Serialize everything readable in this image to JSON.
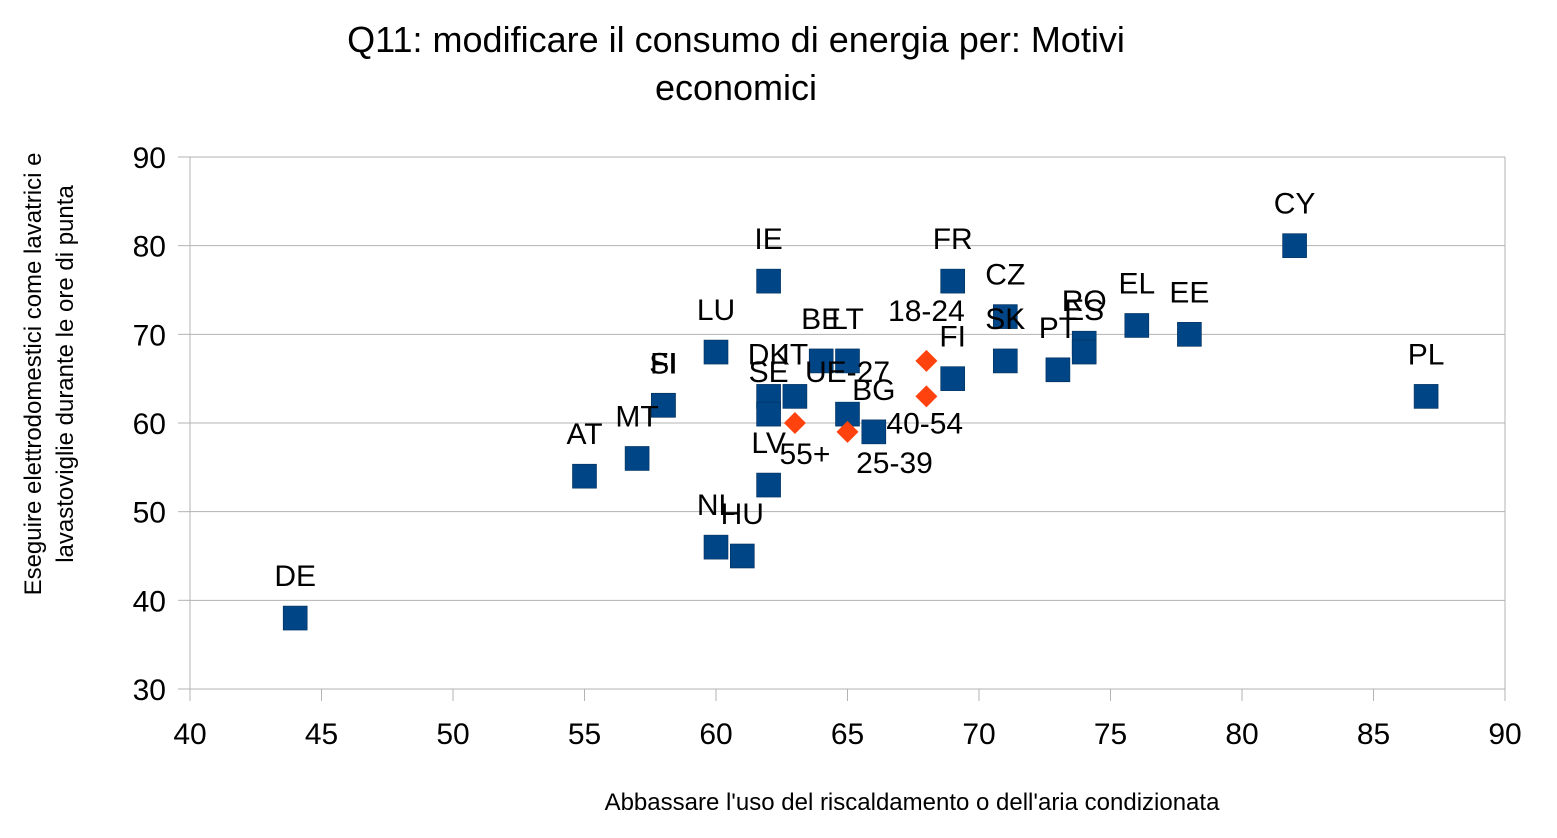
{
  "chart_data": {
    "type": "scatter",
    "title_lines": [
      "Q11: modificare il consumo di energia per: Motivi",
      "economici"
    ],
    "xlabel": "Abbassare l'uso del riscaldamento o dell'aria condizionata",
    "ylabel_lines": [
      "Eseguire elettrodomestici come lavatrici e",
      "lavastoviglie durante le ore di punta"
    ],
    "xlim": [
      40,
      90
    ],
    "ylim": [
      30,
      90
    ],
    "x_ticks": [
      40,
      45,
      50,
      55,
      60,
      65,
      70,
      75,
      80,
      85,
      90
    ],
    "y_ticks": [
      30,
      40,
      50,
      60,
      70,
      80,
      90
    ],
    "grid": "horizontal",
    "colors": {
      "countries": "#004586",
      "age_groups": "#ff420e",
      "grid": "#b3b3b3"
    },
    "series": [
      {
        "marker": "square",
        "points": [
          {
            "label": "DE",
            "x": 44,
            "y": 38
          },
          {
            "label": "AT",
            "x": 55,
            "y": 54
          },
          {
            "label": "MT",
            "x": 57,
            "y": 56
          },
          {
            "label": "FI",
            "x": 58,
            "y": 62
          },
          {
            "label": "SI",
            "x": 58,
            "y": 62
          },
          {
            "label": "LU",
            "x": 60,
            "y": 68
          },
          {
            "label": "NL",
            "x": 60,
            "y": 46
          },
          {
            "label": "HU",
            "x": 61,
            "y": 45
          },
          {
            "label": "IE",
            "x": 62,
            "y": 76
          },
          {
            "label": "DK",
            "x": 62,
            "y": 63
          },
          {
            "label": "SE",
            "x": 62,
            "y": 61
          },
          {
            "label": "LV",
            "x": 62,
            "y": 53
          },
          {
            "label": "IT",
            "x": 63,
            "y": 63
          },
          {
            "label": "BE",
            "x": 64,
            "y": 67
          },
          {
            "label": "LT",
            "x": 65,
            "y": 67
          },
          {
            "label": "UE-27",
            "x": 65,
            "y": 61
          },
          {
            "label": "BG",
            "x": 66,
            "y": 59
          },
          {
            "label": "FR",
            "x": 69,
            "y": 76
          },
          {
            "label": "FI",
            "x": 69,
            "y": 65
          },
          {
            "label": "CZ",
            "x": 71,
            "y": 72
          },
          {
            "label": "SK",
            "x": 71,
            "y": 67
          },
          {
            "label": "PT",
            "x": 73,
            "y": 66
          },
          {
            "label": "RO",
            "x": 74,
            "y": 69
          },
          {
            "label": "ES",
            "x": 74,
            "y": 68
          },
          {
            "label": "EL",
            "x": 76,
            "y": 71
          },
          {
            "label": "EE",
            "x": 78,
            "y": 70
          },
          {
            "label": "CY",
            "x": 82,
            "y": 80
          },
          {
            "label": "PL",
            "x": 87,
            "y": 63
          }
        ]
      },
      {
        "marker": "diamond",
        "points": [
          {
            "label": "18-24",
            "x": 68,
            "y": 67
          },
          {
            "label": "40-54",
            "x": 68,
            "y": 63
          },
          {
            "label": "55+",
            "x": 63,
            "y": 60
          },
          {
            "label": "25-39",
            "x": 65,
            "y": 59
          }
        ]
      }
    ]
  }
}
